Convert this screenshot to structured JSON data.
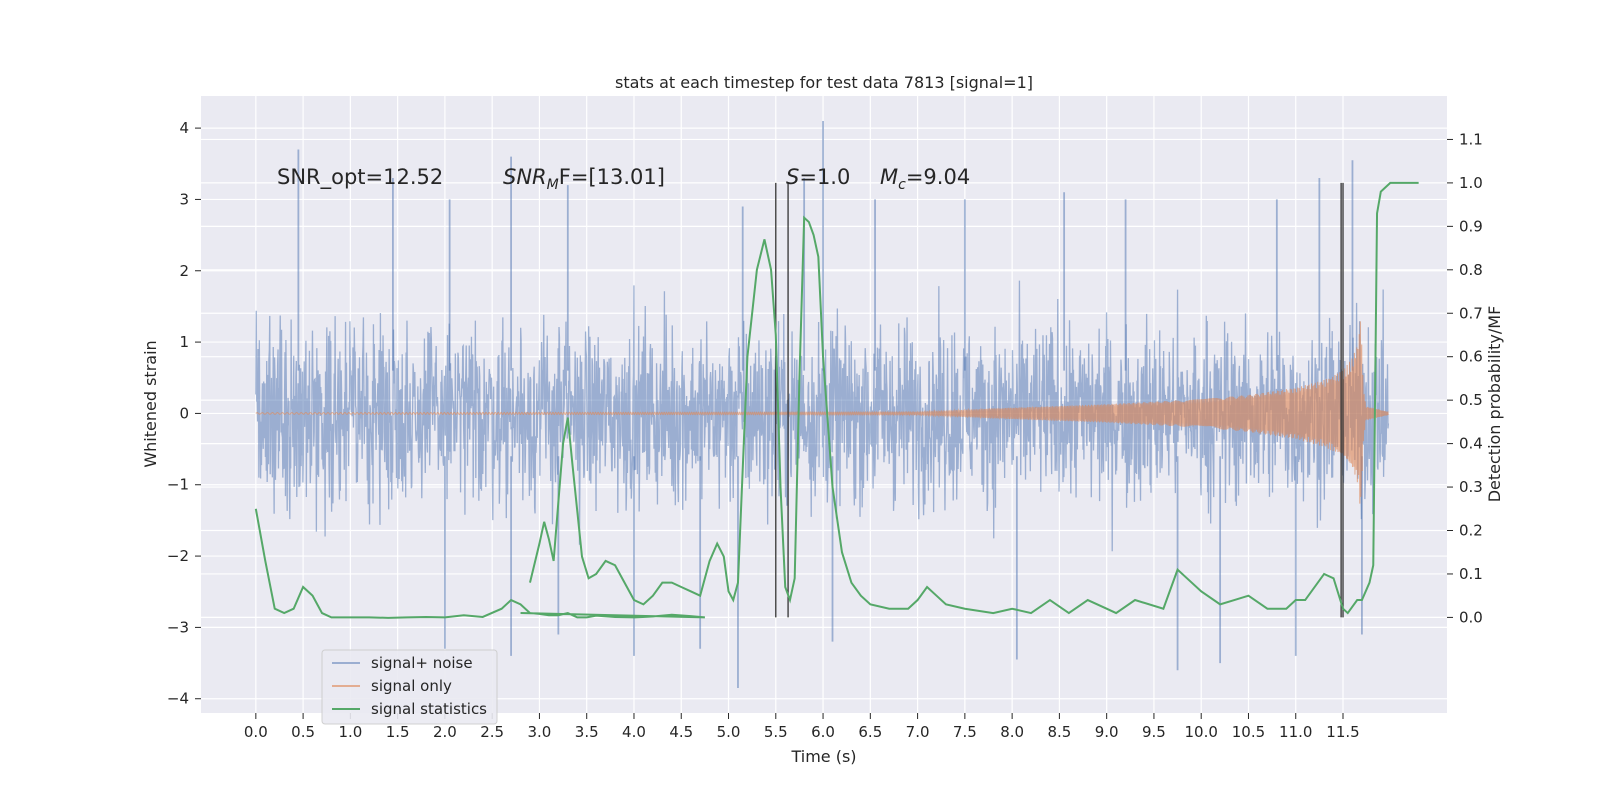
{
  "chart_data": {
    "type": "line",
    "title": "stats at each timestep for test data 7813 [signal=1]",
    "xlabel": "Time (s)",
    "ylabel_left": "Whitened strain",
    "ylabel_right": "Detection probability/MF",
    "xlim": [
      -0.58,
      12.6
    ],
    "ylim_left": [
      -4.2,
      4.45
    ],
    "ylim_right": [
      -0.22,
      1.2
    ],
    "x_ticks": [
      "0.0",
      "0.5",
      "1.0",
      "1.5",
      "2.0",
      "2.5",
      "3.0",
      "3.5",
      "4.0",
      "4.5",
      "5.0",
      "5.5",
      "6.0",
      "6.5",
      "7.0",
      "7.5",
      "8.0",
      "8.5",
      "9.0",
      "9.5",
      "10.0",
      "10.5",
      "11.0",
      "11.5"
    ],
    "y_ticks_left": [
      "−4",
      "−3",
      "−2",
      "−1",
      "0",
      "1",
      "2",
      "3",
      "4"
    ],
    "y_ticks_right": [
      "0.0",
      "0.1",
      "0.2",
      "0.3",
      "0.4",
      "0.5",
      "0.6",
      "0.7",
      "0.8",
      "0.9",
      "1.0",
      "1.1"
    ],
    "grid": true,
    "legend_position": "lower-left",
    "annotations": {
      "snr_opt": "SNR_opt=12.52",
      "snr_mf_italic": "SNR",
      "snr_mf_sub": "M",
      "snr_mf_rest": "F=[13.01]",
      "s_italic": "S",
      "s_rest": "=1.0",
      "mc_italic": "M",
      "mc_sub": "c",
      "mc_rest": "=9.04"
    },
    "vlines": [
      5.5,
      5.63,
      11.48,
      11.5
    ],
    "series": [
      {
        "name": "signal+ noise",
        "axis": "left",
        "color": "#4c72b0",
        "t_end": 11.98,
        "envelope_upper": 2.3,
        "envelope_lower": -2.2,
        "extreme_peaks": [
          [
            0.45,
            3.7
          ],
          [
            1.45,
            3.3
          ],
          [
            2.05,
            3.0
          ],
          [
            2.7,
            3.6
          ],
          [
            3.3,
            3.2
          ],
          [
            5.15,
            2.9
          ],
          [
            5.8,
            3.3
          ],
          [
            6.0,
            4.1
          ],
          [
            6.55,
            3.0
          ],
          [
            7.5,
            3.0
          ],
          [
            8.55,
            3.1
          ],
          [
            9.2,
            3.0
          ],
          [
            10.8,
            3.0
          ],
          [
            11.25,
            3.3
          ],
          [
            11.6,
            3.55
          ]
        ],
        "extreme_troughs": [
          [
            2.0,
            -3.3
          ],
          [
            2.7,
            -3.4
          ],
          [
            3.2,
            -3.1
          ],
          [
            4.0,
            -3.4
          ],
          [
            4.7,
            -3.3
          ],
          [
            5.1,
            -3.85
          ],
          [
            6.1,
            -3.2
          ],
          [
            8.05,
            -3.45
          ],
          [
            9.75,
            -3.6
          ],
          [
            10.2,
            -3.5
          ],
          [
            11.0,
            -3.4
          ],
          [
            11.7,
            -3.1
          ]
        ]
      },
      {
        "name": "signal only",
        "axis": "left",
        "color": "#dd8452",
        "envelope": [
          [
            0,
            0.01
          ],
          [
            7.0,
            0.02
          ],
          [
            8.0,
            0.08
          ],
          [
            9.0,
            0.13
          ],
          [
            10.0,
            0.2
          ],
          [
            10.5,
            0.26
          ],
          [
            11.0,
            0.36
          ],
          [
            11.3,
            0.47
          ],
          [
            11.5,
            0.6
          ],
          [
            11.6,
            0.78
          ],
          [
            11.66,
            1.0
          ],
          [
            11.69,
            1.45
          ],
          [
            11.71,
            0.5
          ],
          [
            11.74,
            0.1
          ],
          [
            11.98,
            0.02
          ]
        ]
      },
      {
        "name": "signal statistics",
        "axis": "right",
        "color": "#55a868",
        "points": [
          [
            0.0,
            0.25
          ],
          [
            0.1,
            0.13
          ],
          [
            0.2,
            0.02
          ],
          [
            0.3,
            0.01
          ],
          [
            0.4,
            0.02
          ],
          [
            0.5,
            0.07
          ],
          [
            0.6,
            0.05
          ],
          [
            0.7,
            0.01
          ],
          [
            0.8,
            0.0
          ],
          [
            1.0,
            0.0
          ],
          [
            1.2,
            0.0
          ],
          [
            1.4,
            -0.001
          ],
          [
            1.6,
            0.0
          ],
          [
            1.8,
            0.001
          ],
          [
            2.0,
            0.0
          ],
          [
            2.2,
            0.005
          ],
          [
            2.4,
            0.001
          ],
          [
            2.6,
            0.02
          ],
          [
            2.7,
            0.04
          ],
          [
            2.8,
            0.03
          ],
          [
            2.9,
            0.01
          ],
          [
            3.0,
            0.008
          ],
          [
            3.1,
            0.005
          ],
          [
            3.2,
            0.005
          ],
          [
            3.3,
            0.01
          ],
          [
            3.4,
            0.0
          ],
          [
            3.5,
            0.0
          ],
          [
            3.6,
            0.004
          ],
          [
            3.8,
            0.001
          ],
          [
            4.0,
            0.0
          ],
          [
            4.2,
            0.002
          ],
          [
            4.4,
            0.006
          ],
          [
            4.6,
            0.003
          ],
          [
            4.75,
            0.0
          ],
          [
            2.8,
            0.01
          ],
          [
            2.9,
            0.08
          ],
          [
            3.0,
            0.17
          ],
          [
            3.05,
            0.22
          ],
          [
            3.1,
            0.18
          ],
          [
            3.15,
            0.13
          ],
          [
            3.25,
            0.4
          ],
          [
            3.3,
            0.46
          ],
          [
            3.35,
            0.35
          ],
          [
            3.45,
            0.14
          ],
          [
            3.52,
            0.09
          ],
          [
            3.6,
            0.1
          ],
          [
            3.7,
            0.13
          ],
          [
            3.8,
            0.12
          ],
          [
            3.9,
            0.08
          ],
          [
            4.0,
            0.04
          ],
          [
            4.1,
            0.03
          ],
          [
            4.2,
            0.05
          ],
          [
            4.3,
            0.08
          ],
          [
            4.4,
            0.08
          ],
          [
            4.5,
            0.07
          ],
          [
            4.6,
            0.06
          ],
          [
            4.7,
            0.05
          ],
          [
            4.8,
            0.13
          ],
          [
            4.88,
            0.17
          ],
          [
            4.95,
            0.14
          ],
          [
            5.0,
            0.06
          ],
          [
            5.05,
            0.04
          ],
          [
            5.1,
            0.08
          ],
          [
            5.2,
            0.6
          ],
          [
            5.3,
            0.8
          ],
          [
            5.38,
            0.87
          ],
          [
            5.45,
            0.8
          ],
          [
            5.5,
            0.65
          ],
          [
            5.55,
            0.3
          ],
          [
            5.6,
            0.07
          ],
          [
            5.65,
            0.04
          ],
          [
            5.7,
            0.09
          ],
          [
            5.75,
            0.55
          ],
          [
            5.8,
            0.92
          ],
          [
            5.85,
            0.91
          ],
          [
            5.9,
            0.88
          ],
          [
            5.95,
            0.83
          ],
          [
            6.0,
            0.6
          ],
          [
            6.1,
            0.3
          ],
          [
            6.2,
            0.15
          ],
          [
            6.3,
            0.08
          ],
          [
            6.4,
            0.05
          ],
          [
            6.5,
            0.03
          ],
          [
            6.7,
            0.02
          ],
          [
            6.9,
            0.02
          ],
          [
            7.0,
            0.04
          ],
          [
            7.1,
            0.07
          ],
          [
            7.2,
            0.05
          ],
          [
            7.3,
            0.03
          ],
          [
            7.5,
            0.02
          ],
          [
            7.8,
            0.01
          ],
          [
            8.0,
            0.02
          ],
          [
            8.2,
            0.01
          ],
          [
            8.4,
            0.04
          ],
          [
            8.6,
            0.01
          ],
          [
            8.8,
            0.04
          ],
          [
            9.0,
            0.02
          ],
          [
            9.1,
            0.01
          ],
          [
            9.3,
            0.04
          ],
          [
            9.6,
            0.02
          ],
          [
            9.75,
            0.11
          ],
          [
            9.85,
            0.09
          ],
          [
            10.0,
            0.06
          ],
          [
            10.2,
            0.03
          ],
          [
            10.35,
            0.04
          ],
          [
            10.5,
            0.05
          ],
          [
            10.7,
            0.02
          ],
          [
            10.9,
            0.02
          ],
          [
            11.0,
            0.04
          ],
          [
            11.1,
            0.04
          ],
          [
            11.3,
            0.1
          ],
          [
            11.4,
            0.09
          ],
          [
            11.5,
            0.02
          ],
          [
            11.55,
            0.01
          ],
          [
            11.65,
            0.04
          ],
          [
            11.7,
            0.04
          ],
          [
            11.78,
            0.08
          ],
          [
            11.82,
            0.12
          ],
          [
            11.86,
            0.93
          ],
          [
            11.9,
            0.98
          ],
          [
            11.95,
            0.99
          ],
          [
            12.0,
            1.0
          ],
          [
            12.3,
            1.0
          ]
        ]
      }
    ]
  }
}
